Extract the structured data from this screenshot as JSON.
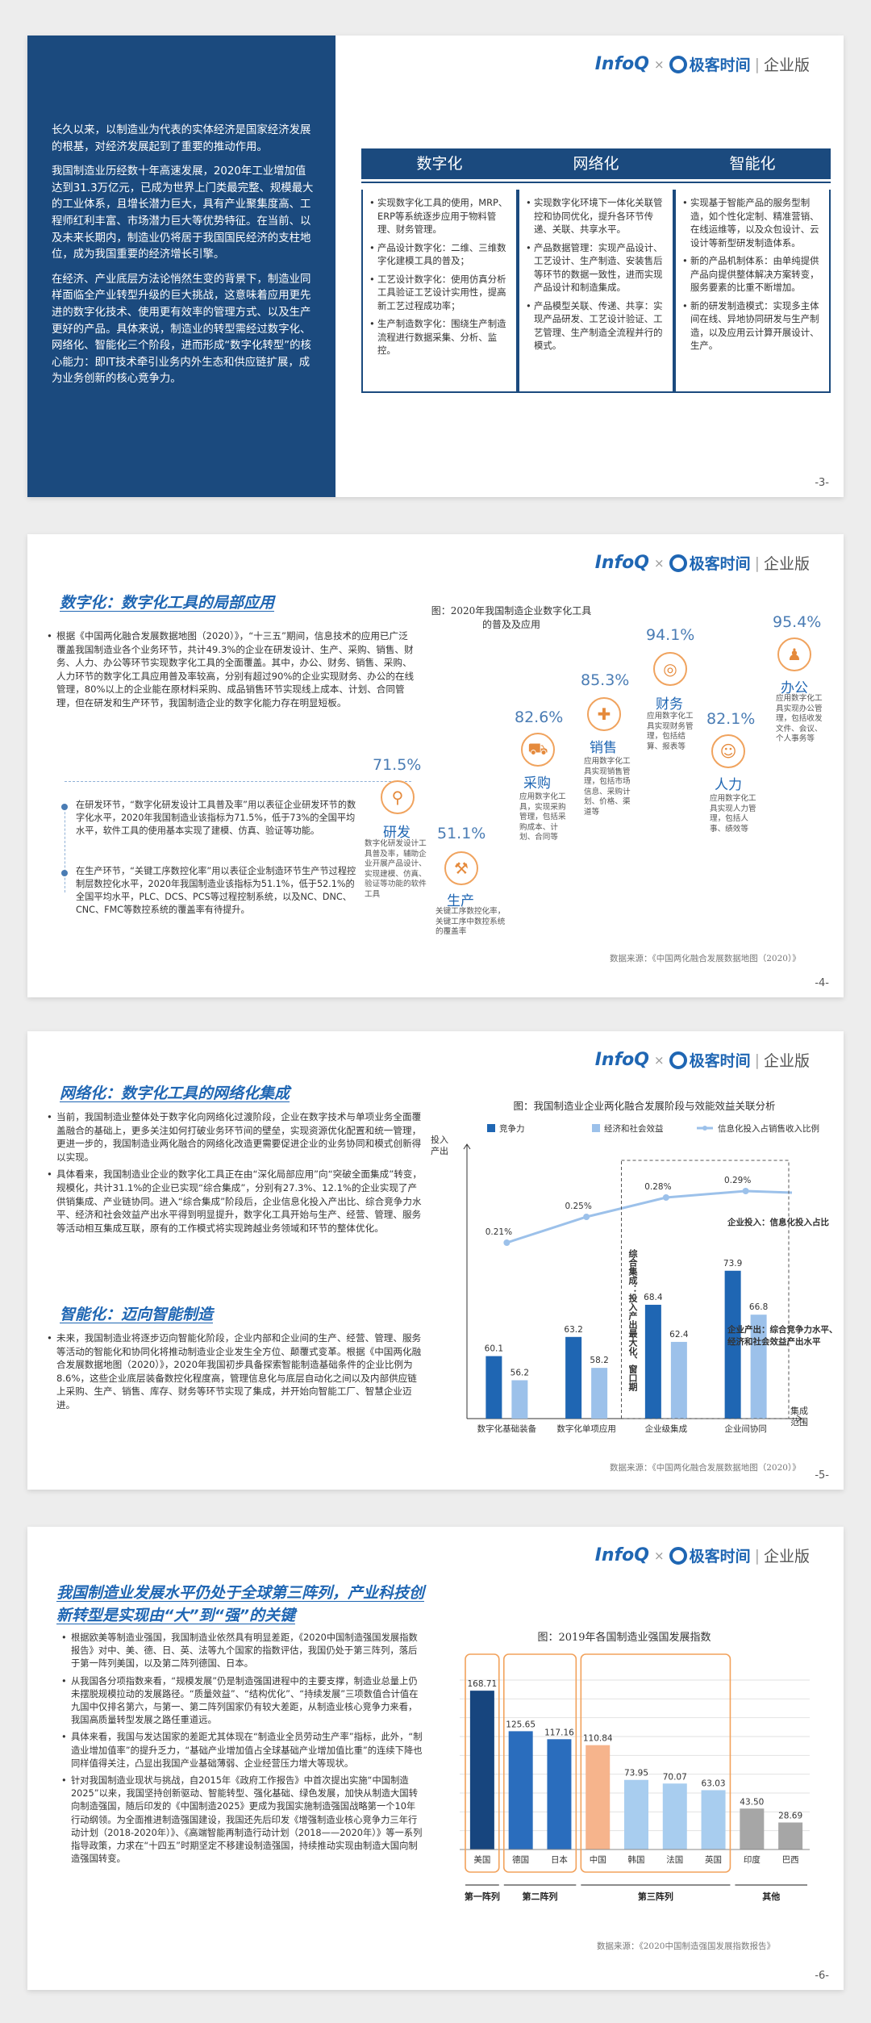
{
  "header": {
    "brand": "InfoQ",
    "cross": "×",
    "geek": "极客时间",
    "sep": "|",
    "edition": "企业版"
  },
  "slide1": {
    "paragraphs": [
      "长久以来，以制造业为代表的实体经济是国家经济发展的根基，对经济发展起到了重要的推动作用。",
      "我国制造业历经数十年高速发展，2020年工业增加值达到31.3万亿元，已成为世界上门类最完整、规模最大的工业体系，且增长潜力巨大，具有产业聚集度高、工程师红利丰富、市场潜力巨大等优势特征。在当前、以及未来长期内，制造业仍将居于我国国民经济的支柱地位，成为我国重要的经济增长引擎。",
      "在经济、产业底层方法论悄然生变的背景下，制造业同样面临全产业转型升级的巨大挑战，这意味着应用更先进的数字化技术、使用更有效率的管理方式、以及生产更好的产品。具体来说，制造业的转型需经过数字化、网络化、智能化三个阶段，进而形成“数字化转型”的核心能力：即IT技术牵引业务内外生态和供应链扩展，成为业务创新的核心竞争力。"
    ],
    "columns": [
      {
        "title": "数字化",
        "items": [
          "实现数字化工具的使用，MRP、ERP等系统逐步应用于物料管理、财务管理。",
          "产品设计数字化：二维、三维数字化建模工具的普及；",
          "工艺设计数字化：使用仿真分析工具验证工艺设计实用性，提高新工艺过程成功率；",
          "生产制造数字化：围绕生产制造流程进行数据采集、分析、监控。"
        ]
      },
      {
        "title": "网络化",
        "items": [
          "实现数字化环境下一体化关联管控和协同优化，提升各环节传递、关联、共享水平。",
          "产品数据管理：实现产品设计、工艺设计、生产制造、安装售后等环节的数据一致性，进而实现产品设计和制造集成。",
          "产品模型关联、传递、共享：实现产品研发、工艺设计验证、工艺管理、生产制造全流程并行的模式。"
        ]
      },
      {
        "title": "智能化",
        "items": [
          "实现基于智能产品的服务型制造，如个性化定制、精准营销、在线运维等，以及众包设计、云设计等新型研发制造体系。",
          "新的产品机制体系：由单纯提供产品向提供整体解决方案转变，服务要素的比重不断增加。",
          "新的研发制造模式：实现多主体间在线、异地协同研发与生产制造，以及应用云计算开展设计、生产。"
        ]
      }
    ],
    "page": "-3-"
  },
  "slide2": {
    "title": "数字化：数字化工具的局部应用",
    "bullet": "根据《中国两化融合发展数据地图（2020）》，“十三五”期间，信息技术的应用已广泛覆盖我国制造业各个业务环节，共计49.3%的企业在研发设计、生产、采购、销售、财务、人力、办公等环节实现数字化工具的全面覆盖。其中，办公、财务、销售、采购、人力环节的数字化工具应用普及率较高，分别有超过90%的企业实现财务、办公的在线管理，80%以上的企业能在原材料采购、成品销售环节实现线上成本、计划、合同管理，但在研发和生产环节，我国制造企业的数字化能力存在明显短板。",
    "notes": [
      "在研发环节，“数字化研发设计工具普及率”用以表征企业研发环节的数字化水平，2020年我国制造业该指标为71.5%，低于73%的全国平均水平，软件工具的使用基本实现了建模、仿真、验证等功能。",
      "在生产环节，“关键工序数控化率”用以表征企业制造环节生产节过程控制层数控化水平，2020年我国制造业该指标为51.1%，低于52.1%的全国平均水平，PLC、DCS、PCS等过程控制系统，以及NC、DNC、CNC、FMC等数控系统的覆盖率有待提升。"
    ],
    "chart_caption": "图：2020年我国制造企业数字化工具的普及及应用",
    "items": [
      {
        "pct": "71.5%",
        "label": "研发",
        "icon": "magnifier-icon",
        "desc": "数字化研发设计工具普及率，辅助企业开展产品设计、实现建模、仿真、验证等功能的软件工具"
      },
      {
        "pct": "51.1%",
        "label": "生产",
        "icon": "gavel-icon",
        "desc": "关键工序数控化率，关键工序中数控系统的覆盖率"
      },
      {
        "pct": "82.6%",
        "label": "采购",
        "icon": "cart-icon",
        "desc": "应用数字化工具，实现采购管理，包括采购成本、计划、合同等"
      },
      {
        "pct": "85.3%",
        "label": "销售",
        "icon": "sale-tag-icon",
        "desc": "应用数字化工具实现销售管理，包括市场信息、采购计划、价格、渠道等"
      },
      {
        "pct": "94.1%",
        "label": "财务",
        "icon": "coins-icon",
        "desc": "应用数字化工具实现财务管理，包括结算、报表等"
      },
      {
        "pct": "82.1%",
        "label": "人力",
        "icon": "user-search-icon",
        "desc": "应用数字化工具实现人力管理，包括人事、绩效等"
      },
      {
        "pct": "95.4%",
        "label": "办公",
        "icon": "meeting-icon",
        "desc": "应用数字化工具实现办公管理，包括收发文件、会议、个人事务等"
      }
    ],
    "source": "数据来源：《中国两化融合发展数据地图（2020）》",
    "page": "-4-"
  },
  "slide3": {
    "title1": "网络化：数字化工具的网络化集成",
    "bullets1": [
      "当前，我国制造业整体处于数字化向网络化过渡阶段，企业在数字技术与单项业务全面覆盖融合的基础上，更多关注如何打破业务环节间的壁垒，实现资源优化配置和统一管理，更进一步的，我国制造业两化融合的网络化改造更需要促进企业的业务协同和模式创新得以实现。",
      "具体看来，我国制造业企业的数字化工具正在由“深化局部应用”向“突破全面集成”转变，规模化，共计31.1%的企业已实现“综合集成”，分别有27.3%、12.1%的企业实现了产供销集成、产业链协同。进入“综合集成”阶段后，企业信息化投入产出比、综合竞争力水平、经济和社会效益产出水平得到明显提升，数字化工具开始与生产、经营、管理、服务等活动相互集成互联，原有的工作模式将实现跨越业务领域和环节的整体优化。"
    ],
    "title2": "智能化：迈向智能制造",
    "bullets2": [
      "未来，我国制造业将逐步迈向智能化阶段，企业内部和企业间的生产、经营、管理、服务等活动的智能化和协同化将推动制造业企业发生全方位、颠覆式变革。根据《中国两化融合发展数据地图（2020）》，2020年我国初步具备探索智能制造基础条件的企业比例为8.6%，这些企业底层装备数控化程度高，管理信息化与底层自动化之间以及内部供应链上采购、生产、销售、库存、财务等环节实现了集成，并开始向智能工厂、智慧企业迈进。"
    ],
    "chart_caption": "图：我国制造业企业两化融合发展阶段与效能效益关联分析",
    "source": "数据来源：《中国两化融合发展数据地图（2020）》",
    "page": "-5-"
  },
  "slide4": {
    "title": "我国制造业发展水平仍处于全球第三阵列，产业科技创新转型是实现由“大”到“强”的关键",
    "bullets": [
      "根据欧美等制造业强国，我国制造业依然具有明显差距，《2020中国制造强国发展指数报告》对中、美、德、日、英、法等九个国家的指数评估，我国仍处于第三阵列，落后于第一阵列美国，以及第二阵列德国、日本。",
      "从我国各分项指数来看，“规模发展”仍是制造强国进程中的主要支撑，制造业总量上仍未摆脱规模拉动的发展路径。“质量效益”、“结构优化”、“持续发展”三项数值合计值在九国中仅排名第六，与第一、第二阵列国家仍有较大差距，从制造业核心竞争力来看，我国高质量转型发展之路任重道远。",
      "具体来看，我国与发达国家的差距尤其体现在“制造业全员劳动生产率”指标，此外，“制造业增加值率”的提升乏力，“基础产业增加值占全球基础产业增加值比重”的连续下降也同样值得关注，凸显出我国产业基础薄弱、企业经营压力增大等现状。",
      "针对我国制造业现状与挑战，自2015年《政府工作报告》中首次提出实施“中国制造2025”以来，我国坚持创新驱动、智能转型、强化基础、绿色发展，加快从制造大国转向制造强国，随后印发的《中国制造2025》更成为我国实施制造强国战略第一个10年行动纲领。为全面推进制造强国建设，我国还先后印发《增强制造业核心竞争力三年行动计划（2018-2020年）》、《高端智能再制造行动计划（2018——2020年）》等一系列指导政策，力求在“十四五”时期坚定不移建设制造强国，持续推动实现由制造大国向制造强国转变。"
    ],
    "chart_caption": "图：2019年各国制造业强国发展指数",
    "source": "数据来源：《2020中国制造强国发展指数报告》",
    "page": "-6-"
  },
  "chart_data": [
    {
      "type": "bar",
      "title": "图：我国制造业企业两化融合发展阶段与效能效益关联分析",
      "xlabel": "集成范围",
      "ylabel": "投入产出",
      "categories": [
        "数字化基础装备",
        "数字化单项应用",
        "企业级集成",
        "企业间协同"
      ],
      "series": [
        {
          "name": "竞争力",
          "values": [
            60.1,
            63.2,
            68.4,
            73.9
          ],
          "color": "#1f66b3"
        },
        {
          "name": "经济和社会效益",
          "values": [
            56.2,
            58.2,
            62.4,
            66.8
          ],
          "color": "#9cc1ea"
        },
        {
          "name": "信息化投入占销售收入比例",
          "type": "line",
          "values": [
            0.21,
            0.25,
            0.28,
            0.29
          ],
          "labels": [
            "0.21%",
            "0.25%",
            "0.28%",
            "0.29%"
          ],
          "color": "#9cc1ea"
        }
      ],
      "annotations": [
        "综合集成：投入产出最大化、窗口期",
        "企业投入：信息化投入占比",
        "企业产出：综合竞争力水平、经济和社会效益产出水平"
      ],
      "ylim": [
        50,
        80
      ],
      "legend": "top"
    },
    {
      "type": "bar",
      "title": "图：2019年各国制造业强国发展指数",
      "categories": [
        "美国",
        "德国",
        "日本",
        "中国",
        "韩国",
        "法国",
        "英国",
        "印度",
        "巴西"
      ],
      "values": [
        168.71,
        125.65,
        117.16,
        110.84,
        73.95,
        70.07,
        63.03,
        43.5,
        28.69
      ],
      "labels": [
        "168.71",
        "125.65",
        "117.16",
        "110.84",
        "73.95",
        "70.07",
        "63.03",
        "43.50",
        "28.69"
      ],
      "groups": [
        {
          "name": "第一阵列",
          "members": [
            "美国"
          ]
        },
        {
          "name": "第二阵列",
          "members": [
            "德国",
            "日本"
          ]
        },
        {
          "name": "第三阵列",
          "members": [
            "中国",
            "韩国",
            "法国",
            "英国"
          ]
        },
        {
          "name": "其他",
          "members": [
            "印度",
            "巴西"
          ]
        }
      ],
      "colors": {
        "first": "#17457e",
        "second": "#2a6dbd",
        "china": "#f6b48c",
        "third": "#a8cdef",
        "other": "#a6a6a6",
        "frame": "#f2a25c"
      },
      "ylim": [
        0,
        180
      ]
    }
  ]
}
